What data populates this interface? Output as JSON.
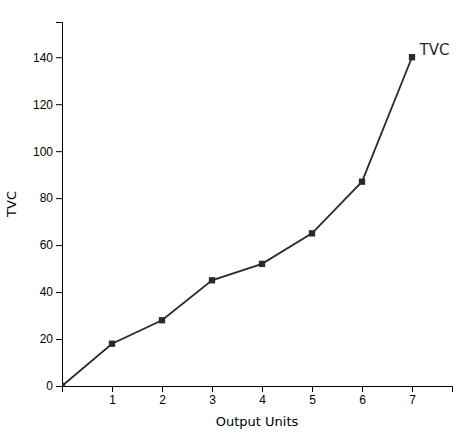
{
  "chart_data": {
    "type": "line",
    "x": [
      0,
      1,
      2,
      3,
      4,
      5,
      6,
      7
    ],
    "values": [
      0,
      18,
      28,
      45,
      52,
      65,
      87,
      140
    ],
    "color": "#2a2a2a",
    "marker": "square",
    "xlabel": "Output Units",
    "ylabel": "TVC",
    "xlim": [
      0,
      7.8
    ],
    "ylim": [
      0,
      155
    ],
    "xticks": [
      1,
      2,
      3,
      4,
      5,
      6,
      7
    ],
    "yticks": [
      0,
      20,
      40,
      60,
      80,
      100,
      120,
      140
    ],
    "annotations": [
      {
        "text": "TVC",
        "x": 7.15,
        "y": 143
      }
    ]
  }
}
